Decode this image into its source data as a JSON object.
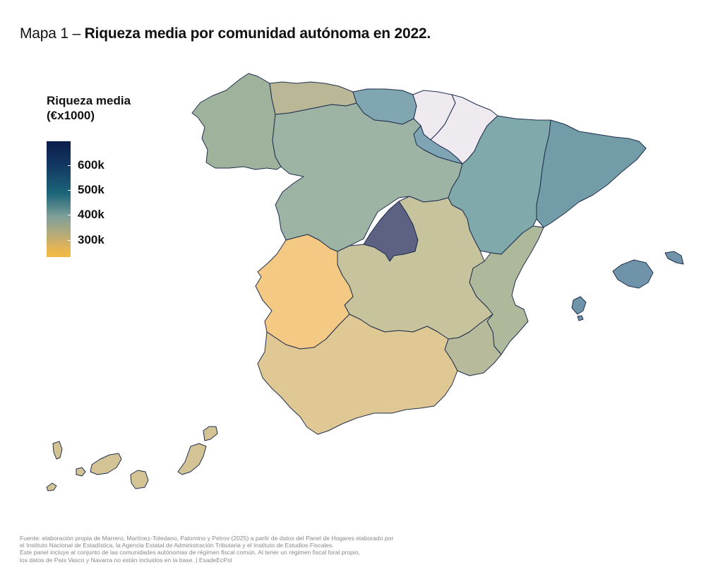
{
  "title": {
    "prefix": "Mapa 1 – ",
    "bold": "Riqueza media por comunidad autónoma en 2022."
  },
  "legend": {
    "title_line1": "Riqueza media",
    "title_line2": "(€x1000)",
    "ticks": [
      "600k",
      "500k",
      "400k",
      "300k"
    ]
  },
  "source": [
    "Fuente: elaboración propia de Marrero, Martínez-Toledano, Palomino y Petrov (2025) a partir de datos del Panel de Hogares elaborado por",
    "el Instituto Nacional de Estadística, la Agencia Estatal de Administración Tributaria y el Instituto de Estudios Fiscales.",
    "Este panel incluye al conjunto de las comunidades autónomas de régimen fiscal común. Al tener un régimen fiscal foral propio,",
    "los datos de País Vasco y Navarra no están incluidos en la base. | EsadeEcPol"
  ],
  "colors": {
    "galicia": "#9fb39c",
    "asturias": "#b9b796",
    "cantabria": "#7fa6b1",
    "pais_vasco": "#efeaf0",
    "navarra": "#efeaf0",
    "castilla_leon": "#9db4a5",
    "la_rioja": "#7fa5b4",
    "aragon": "#80a9ab",
    "cataluna": "#729ca8",
    "madrid": "#5d6282",
    "castilla_la_mancha": "#c6c39d",
    "extremadura": "#f3c983",
    "valencia": "#aeb99c",
    "murcia": "#b8bb9b",
    "andalucia": "#dfc894",
    "baleares": "#6f93a9",
    "canarias": "#d4c495"
  }
}
